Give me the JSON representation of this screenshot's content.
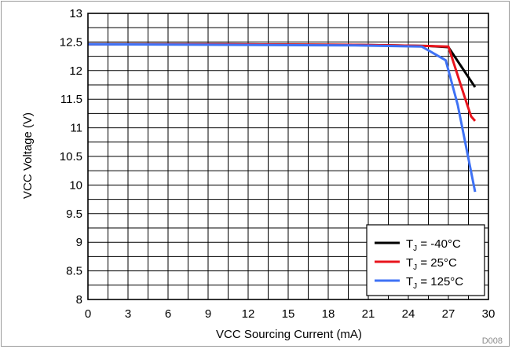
{
  "figure_id": "D008",
  "chart_data": {
    "type": "line",
    "title": "",
    "xlabel": "VCC Sourcing Current (mA)",
    "ylabel": "VCC Voltage (V)",
    "xlim": [
      0,
      30
    ],
    "ylim": [
      8,
      13
    ],
    "xticks": [
      0,
      3,
      6,
      9,
      12,
      15,
      18,
      21,
      24,
      27,
      30
    ],
    "yticks": [
      8,
      8.5,
      9,
      9.5,
      10,
      10.5,
      11,
      11.5,
      12,
      12.5,
      13
    ],
    "xtick_labels": [
      "0",
      "3",
      "6",
      "9",
      "12",
      "15",
      "18",
      "21",
      "24",
      "27",
      "30"
    ],
    "ytick_labels": [
      "8",
      "8.5",
      "9",
      "9.5",
      "10",
      "10.5",
      "11",
      "11.5",
      "12",
      "12.5",
      "13"
    ],
    "grid": true,
    "grid_minor_x_step": 1.5,
    "grid_minor_y_step": 0.25,
    "legend_position": "bottom-right",
    "series": [
      {
        "name_main": "T",
        "name_sub": "J",
        "name_rest": " = -40°C",
        "color": "#000000",
        "dash": "",
        "x": [
          0,
          10,
          20,
          25.5,
          27,
          29
        ],
        "y": [
          12.46,
          12.46,
          12.45,
          12.43,
          12.41,
          11.71
        ]
      },
      {
        "name_main": "T",
        "name_sub": "J",
        "name_rest": " = 25°C",
        "color": "#e8141c",
        "dash": "",
        "x": [
          0,
          10,
          20,
          25.5,
          27,
          28.3,
          28.7,
          29
        ],
        "y": [
          12.46,
          12.46,
          12.45,
          12.43,
          12.42,
          11.48,
          11.2,
          11.12
        ]
      },
      {
        "name_main": "T",
        "name_sub": "J",
        "name_rest": " = 125°C",
        "color": "#3f72f5",
        "dash": "",
        "x": [
          0,
          10,
          20,
          25,
          26.8,
          27.7,
          29
        ],
        "y": [
          12.46,
          12.45,
          12.44,
          12.42,
          12.18,
          11.4,
          9.88
        ]
      }
    ]
  }
}
